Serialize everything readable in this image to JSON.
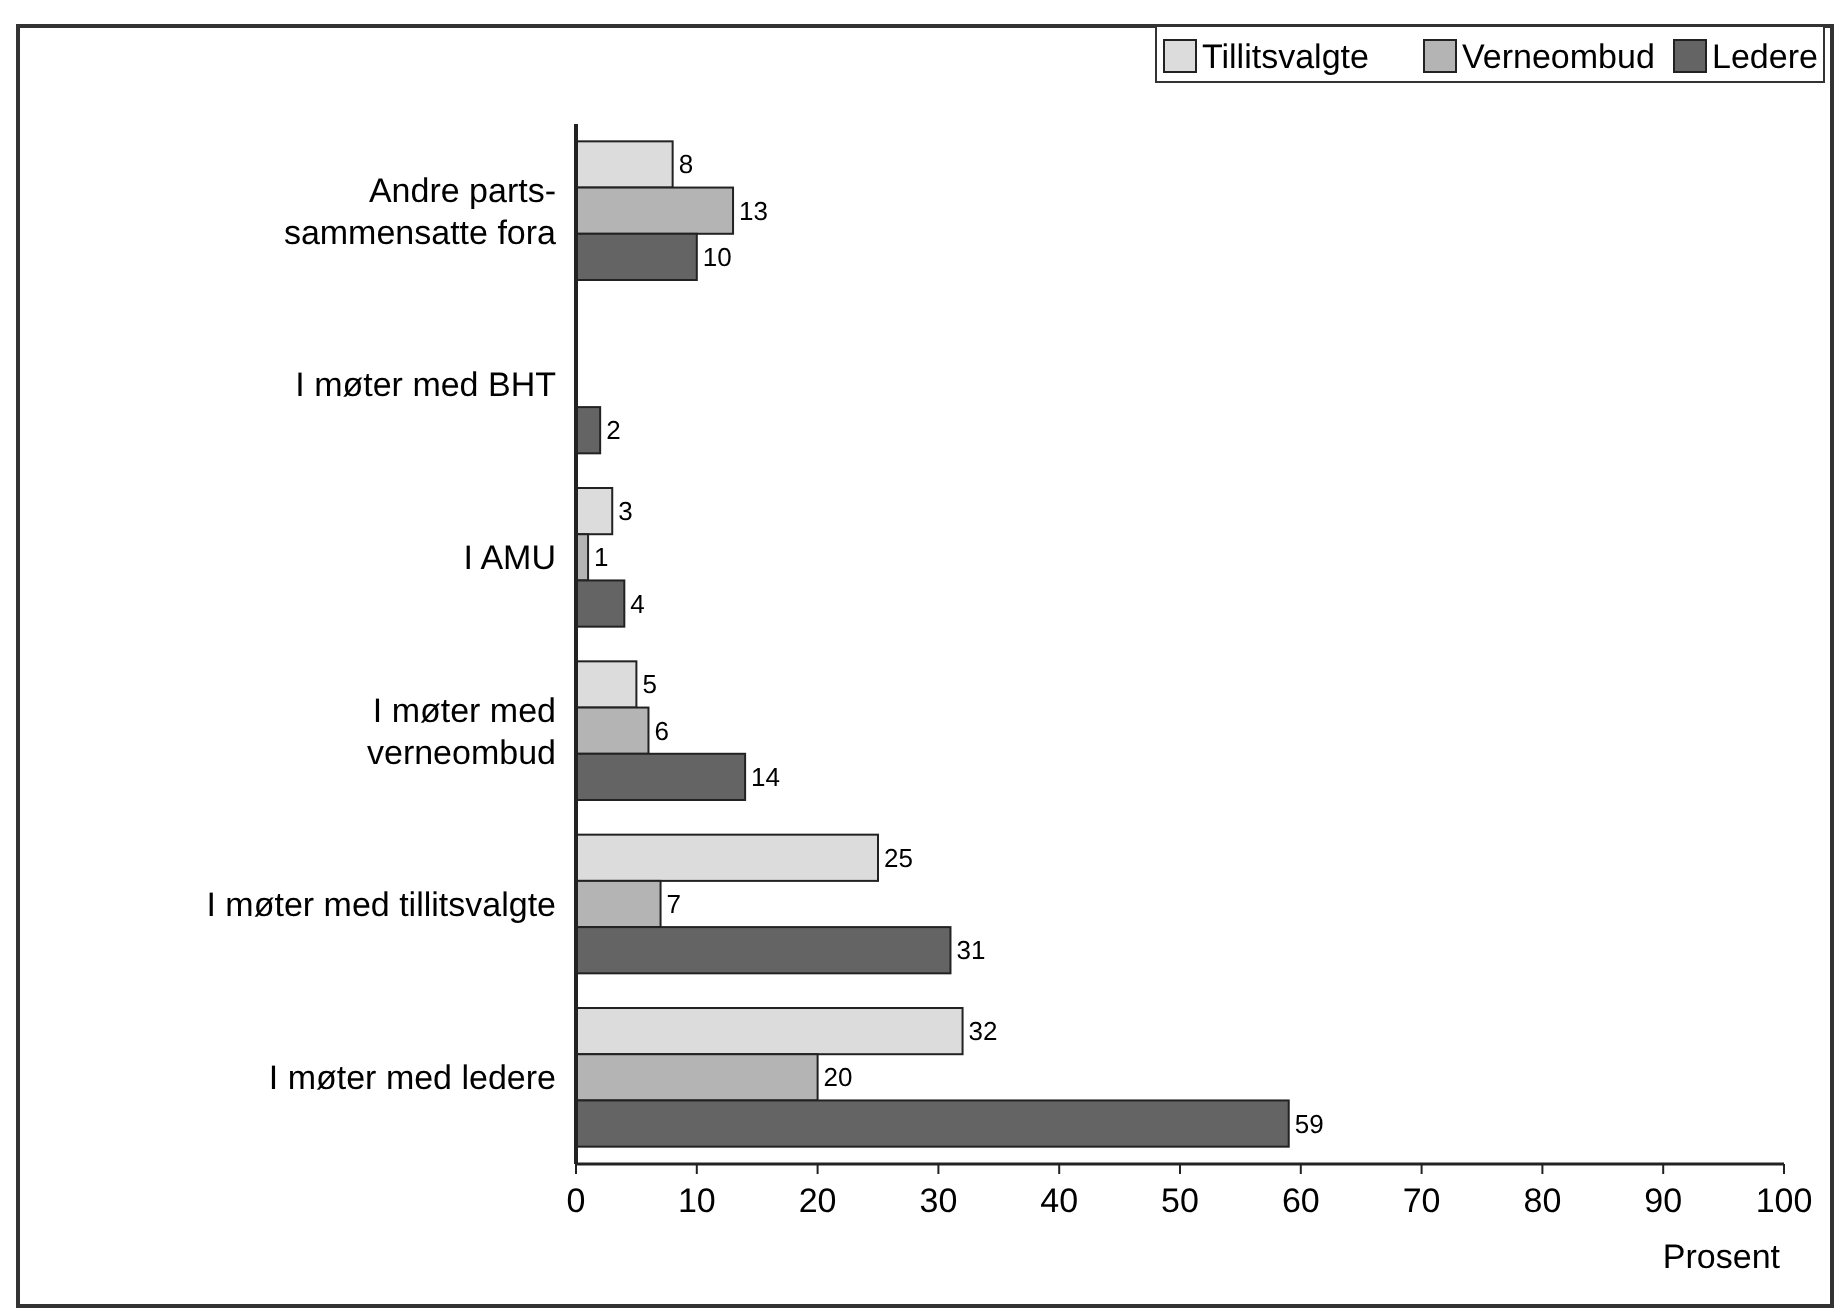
{
  "chart_data": {
    "type": "bar",
    "orientation": "horizontal",
    "categories": [
      "Andre parts-\nsammensatte fora",
      "I møter med BHT",
      "I AMU",
      "I møter med\nverneombud",
      "I møter med tillitsvalgte",
      "I møter med ledere"
    ],
    "series": [
      {
        "name": "Tillitsvalgte",
        "color": "#dcdcdc",
        "values": [
          8,
          null,
          3,
          5,
          25,
          32
        ]
      },
      {
        "name": "Verneombud",
        "color": "#b4b4b4",
        "values": [
          13,
          null,
          1,
          6,
          7,
          20
        ]
      },
      {
        "name": "Ledere",
        "color": "#646464",
        "values": [
          10,
          2,
          4,
          14,
          31,
          59
        ]
      }
    ],
    "xlim": [
      0,
      100
    ],
    "xticks": [
      0,
      10,
      20,
      30,
      40,
      50,
      60,
      70,
      80,
      90,
      100
    ],
    "xlabel": "Prosent",
    "data_labels": true,
    "legend": "top right",
    "grid": false
  }
}
